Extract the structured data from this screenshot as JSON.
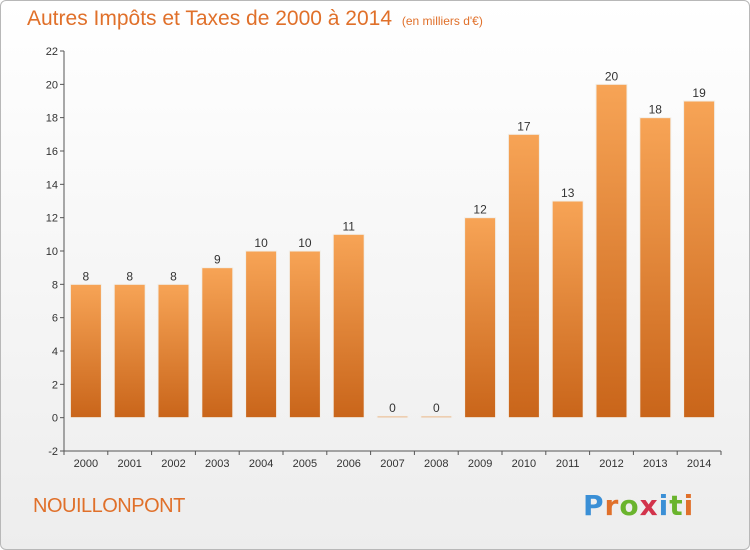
{
  "header": {
    "title": "Autres Impôts et Taxes de 2000 à 2014",
    "subtitle": "(en milliers d'€)"
  },
  "footer": {
    "location": "NOUILLONPONT",
    "logo": {
      "text": "Proxiti",
      "letter_colors": [
        "#3a8fd6",
        "#e0702a",
        "#6ab42d",
        "#d2334b",
        "#3a8fd6",
        "#6ab42d",
        "#e0702a"
      ]
    }
  },
  "colors": {
    "accent": "#e0702a",
    "bar_top": "#f7a456",
    "bar_bottom": "#c9651a"
  },
  "chart_data": {
    "type": "bar",
    "categories": [
      "2000",
      "2001",
      "2002",
      "2003",
      "2004",
      "2005",
      "2006",
      "2007",
      "2008",
      "2009",
      "2010",
      "2011",
      "2012",
      "2013",
      "2014"
    ],
    "values": [
      8,
      8,
      8,
      9,
      10,
      10,
      11,
      0,
      0,
      12,
      17,
      13,
      20,
      18,
      19
    ],
    "data_labels": [
      "8",
      "8",
      "8",
      "9",
      "10",
      "10",
      "11",
      "0",
      "0",
      "12",
      "17",
      "13",
      "20",
      "18",
      "19"
    ],
    "title": "Autres Impôts et Taxes de 2000 à 2014",
    "ylim": [
      -2,
      22
    ],
    "yticks": [
      -2,
      0,
      2,
      4,
      6,
      8,
      10,
      12,
      14,
      16,
      18,
      20,
      22
    ],
    "grid": false,
    "legend": "none"
  }
}
